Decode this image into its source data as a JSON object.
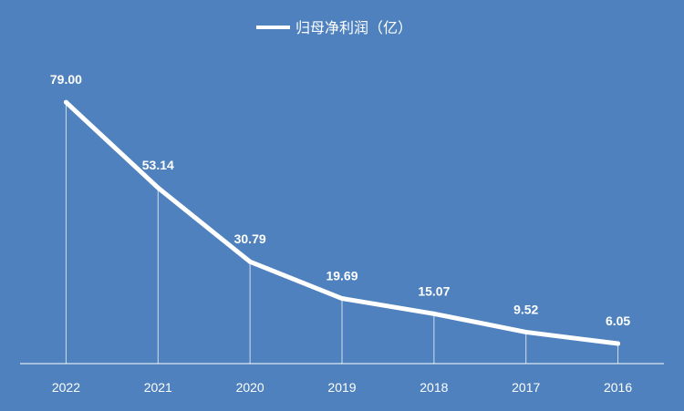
{
  "chart_data": {
    "type": "line",
    "legend": {
      "position": "top-center"
    },
    "series": [
      {
        "name": "归母净利润（亿）",
        "color": "#ffffff",
        "values": [
          79.0,
          53.14,
          30.79,
          19.69,
          15.07,
          9.52,
          6.05
        ]
      }
    ],
    "categories": [
      "2022",
      "2021",
      "2020",
      "2019",
      "2018",
      "2017",
      "2016"
    ],
    "data_labels": [
      "79.00",
      "53.14",
      "30.79",
      "19.69",
      "15.07",
      "9.52",
      "6.05"
    ],
    "ylim": [
      0,
      100
    ],
    "grid": false,
    "drop_lines": true,
    "colors": {
      "background": "#4e81bd",
      "line": "#ffffff",
      "axis": "#ffffff"
    }
  }
}
